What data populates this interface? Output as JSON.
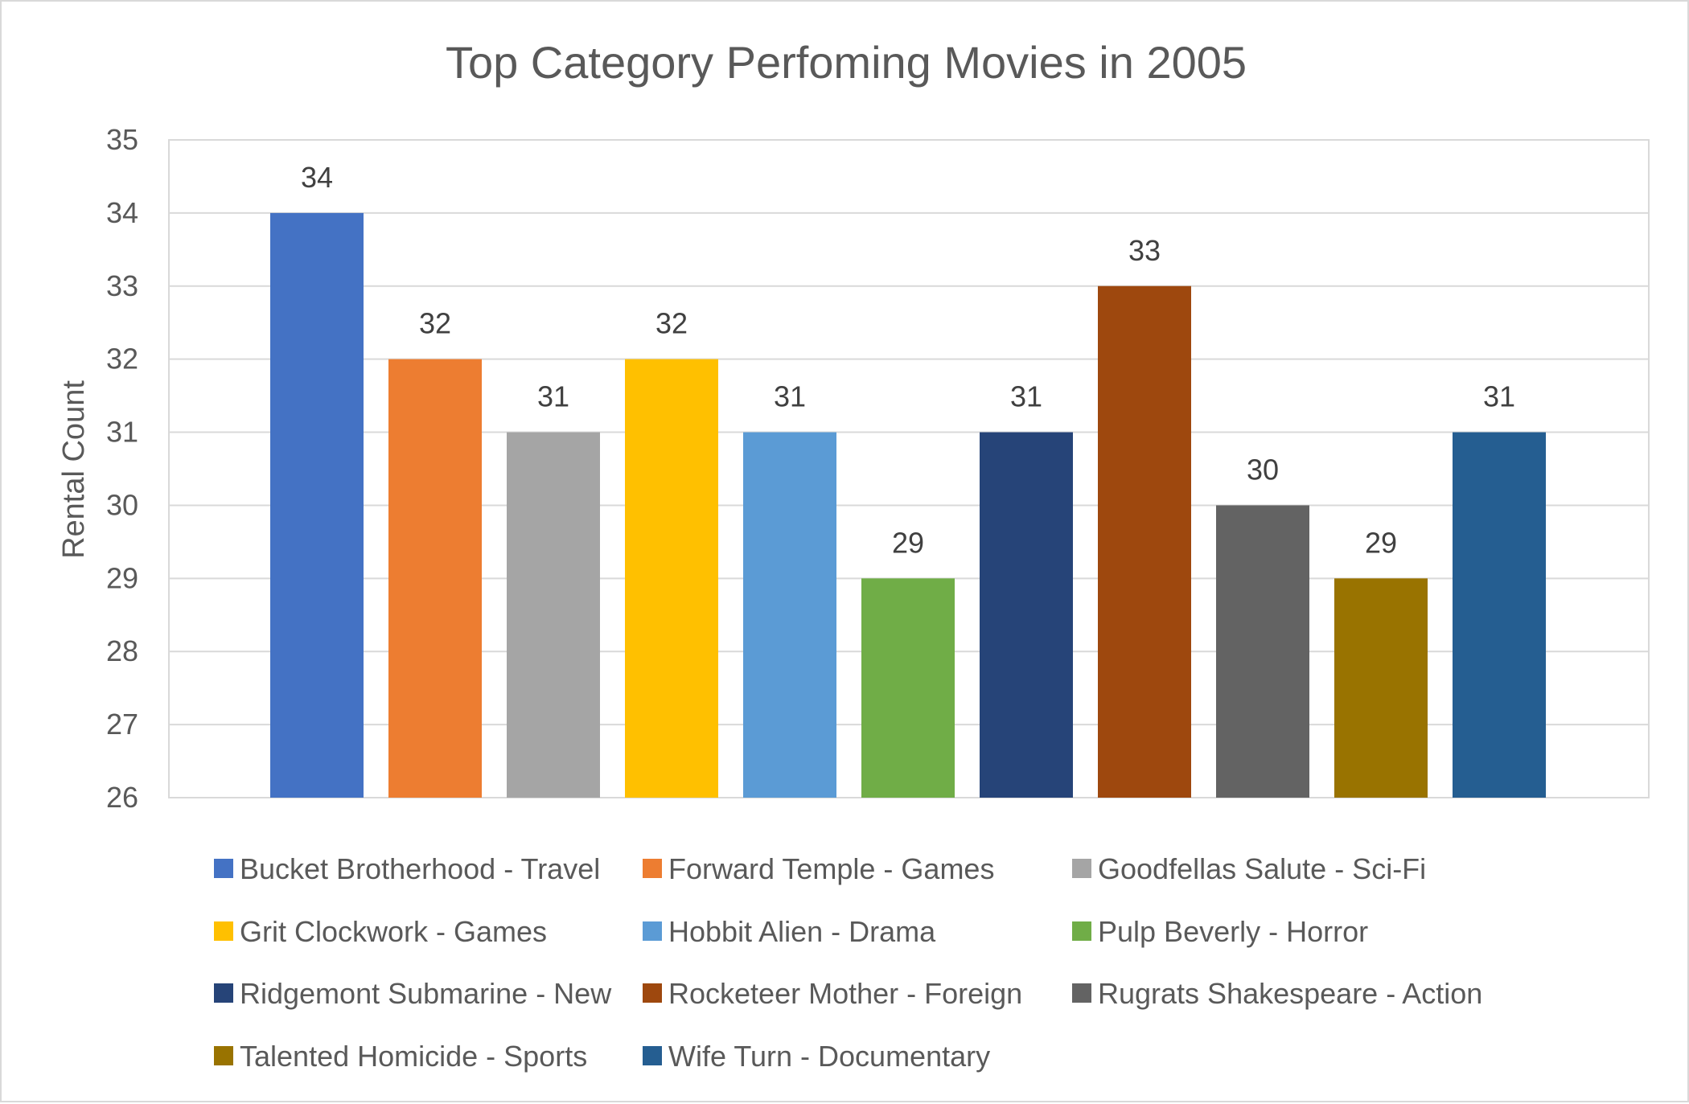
{
  "chart_data": {
    "type": "bar",
    "title": "Top Category Perfoming Movies in 2005",
    "xlabel": "",
    "ylabel": "Rental Count",
    "ylim": [
      26,
      35
    ],
    "ytick_step": 1,
    "grid": true,
    "legend_position": "bottom",
    "series": [
      {
        "name": "Bucket Brotherhood - Travel",
        "value": 34,
        "color": "#4472C4"
      },
      {
        "name": "Forward Temple - Games",
        "value": 32,
        "color": "#ED7D31"
      },
      {
        "name": "Goodfellas Salute - Sci-Fi",
        "value": 31,
        "color": "#A5A5A5"
      },
      {
        "name": "Grit Clockwork - Games",
        "value": 32,
        "color": "#FFC000"
      },
      {
        "name": "Hobbit Alien - Drama",
        "value": 31,
        "color": "#5B9BD5"
      },
      {
        "name": "Pulp Beverly - Horror",
        "value": 29,
        "color": "#70AD47"
      },
      {
        "name": "Ridgemont Submarine - New",
        "value": 31,
        "color": "#264478"
      },
      {
        "name": "Rocketeer Mother - Foreign",
        "value": 33,
        "color": "#9E480E"
      },
      {
        "name": "Rugrats Shakespeare - Action",
        "value": 30,
        "color": "#636363"
      },
      {
        "name": "Talented Homicide - Sports",
        "value": 29,
        "color": "#997300"
      },
      {
        "name": "Wife Turn - Documentary",
        "value": 31,
        "color": "#255E91"
      }
    ]
  }
}
